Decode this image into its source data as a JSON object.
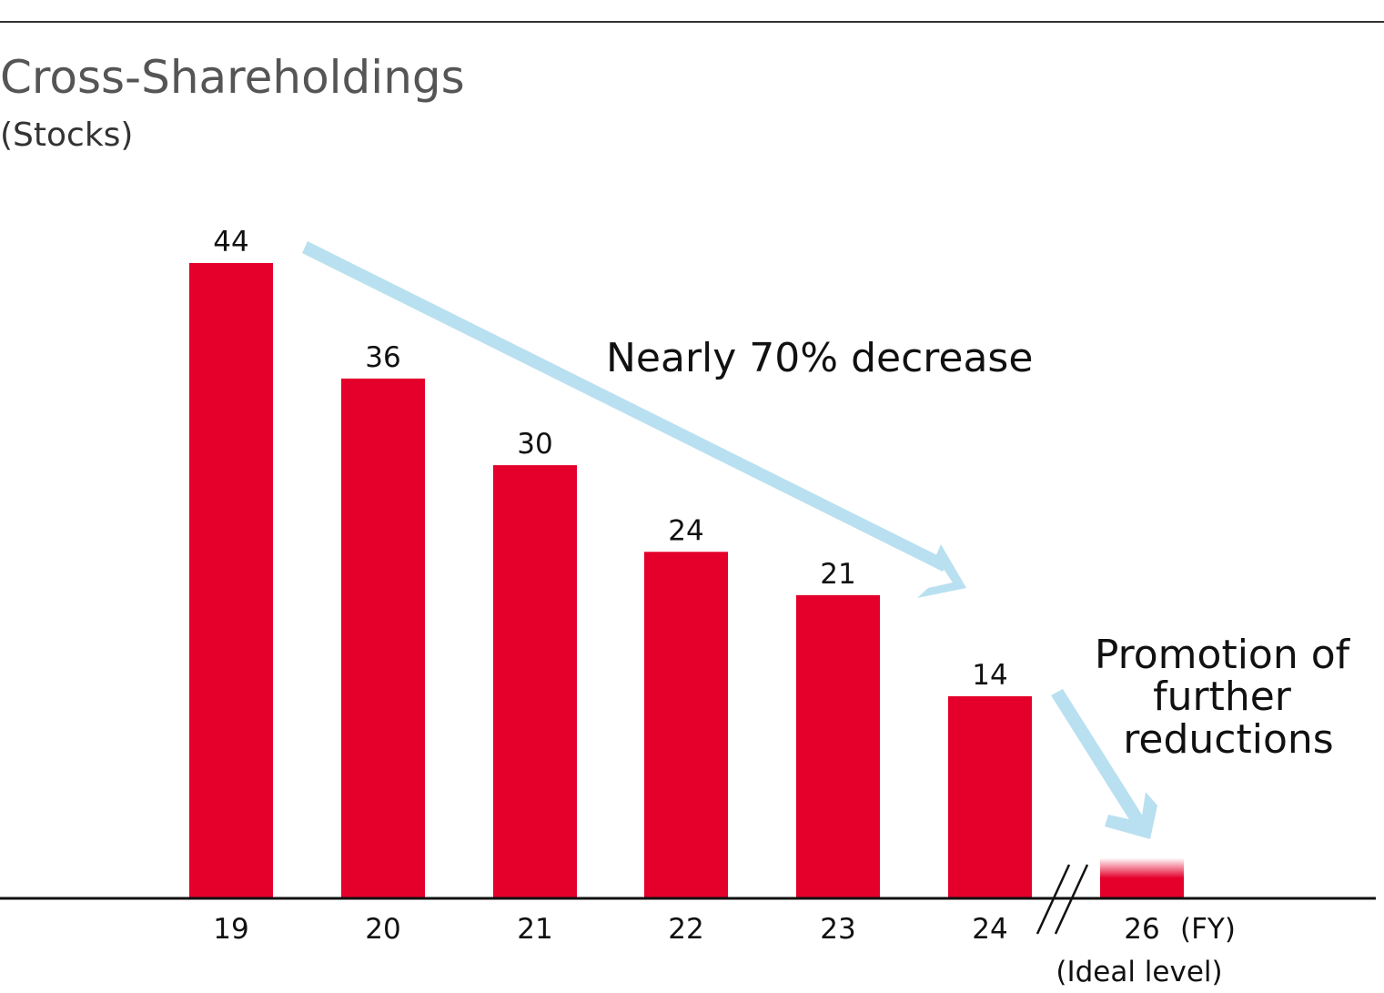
{
  "chart_data": {
    "type": "bar",
    "title": "Cross-Shareholdings",
    "ylabel": "(Stocks)",
    "xlabel": "(FY)",
    "categories": [
      "19",
      "20",
      "21",
      "22",
      "23",
      "24",
      "26"
    ],
    "values": [
      44,
      36,
      30,
      24,
      21,
      14,
      2.8
    ],
    "data_labels": [
      "44",
      "36",
      "30",
      "24",
      "21",
      "14",
      null
    ],
    "category_notes": {
      "26": "(Ideal level)"
    },
    "ylim": [
      0,
      48
    ],
    "grid": false,
    "axis_break_between": [
      "24",
      "26"
    ],
    "annotations": [
      {
        "text": "Nearly 70% decrease"
      },
      {
        "lines": [
          "Promotion of",
          "further",
          "reductions"
        ]
      }
    ],
    "colors": {
      "bar": "#e4002b",
      "arrow": "#b9e0f0",
      "title": "#555555"
    }
  }
}
